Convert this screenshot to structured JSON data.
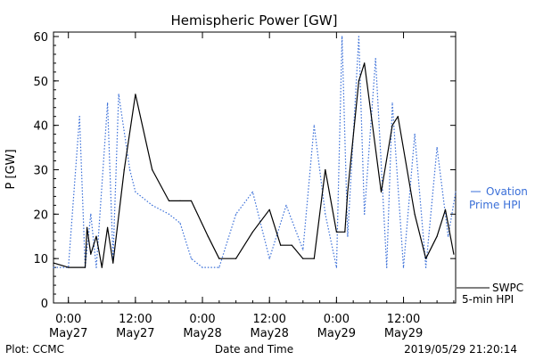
{
  "chart_data": {
    "type": "line",
    "title": "Hemispheric Power [GW]",
    "xlabel": "Date and Time",
    "ylabel": "P [GW]",
    "ylim": [
      0,
      61
    ],
    "yticks": [
      0,
      10,
      20,
      30,
      40,
      50,
      60
    ],
    "xlim": [
      "2019-05-26 21:20",
      "2019-05-29 21:20"
    ],
    "x_ticks": [
      {
        "x": "2019-05-27 00:00",
        "time": "0:00",
        "date": "May27"
      },
      {
        "x": "2019-05-27 12:00",
        "time": "12:00",
        "date": "May27"
      },
      {
        "x": "2019-05-28 00:00",
        "time": "0:00",
        "date": "May28"
      },
      {
        "x": "2019-05-28 12:00",
        "time": "12:00",
        "date": "May28"
      },
      {
        "x": "2019-05-29 00:00",
        "time": "0:00",
        "date": "May29"
      },
      {
        "x": "2019-05-29 12:00",
        "time": "12:00",
        "date": "May29"
      }
    ],
    "grid": false,
    "legend": "right",
    "series": [
      {
        "name": "SWPC 5-min HPI",
        "color": "#000000",
        "style": "solid",
        "points": [
          [
            "2019-05-26 21:20",
            9
          ],
          [
            "2019-05-27 00:00",
            8
          ],
          [
            "2019-05-27 03:00",
            8
          ],
          [
            "2019-05-27 03:20",
            17
          ],
          [
            "2019-05-27 04:00",
            11
          ],
          [
            "2019-05-27 05:00",
            15
          ],
          [
            "2019-05-27 06:00",
            8
          ],
          [
            "2019-05-27 07:00",
            17
          ],
          [
            "2019-05-27 08:00",
            9
          ],
          [
            "2019-05-27 10:00",
            30
          ],
          [
            "2019-05-27 12:00",
            47
          ],
          [
            "2019-05-27 15:00",
            30
          ],
          [
            "2019-05-27 18:00",
            23
          ],
          [
            "2019-05-27 20:00",
            23
          ],
          [
            "2019-05-27 22:00",
            23
          ],
          [
            "2019-05-28 01:00",
            15
          ],
          [
            "2019-05-28 03:00",
            10
          ],
          [
            "2019-05-28 06:00",
            10
          ],
          [
            "2019-05-28 09:00",
            16
          ],
          [
            "2019-05-28 12:00",
            21
          ],
          [
            "2019-05-28 14:00",
            13
          ],
          [
            "2019-05-28 16:00",
            13
          ],
          [
            "2019-05-28 18:00",
            10
          ],
          [
            "2019-05-28 20:00",
            10
          ],
          [
            "2019-05-28 22:00",
            30
          ],
          [
            "2019-05-29 00:00",
            16
          ],
          [
            "2019-05-29 01:30",
            16
          ],
          [
            "2019-05-29 02:00",
            25
          ],
          [
            "2019-05-29 04:00",
            50
          ],
          [
            "2019-05-29 05:00",
            54
          ],
          [
            "2019-05-29 08:00",
            25
          ],
          [
            "2019-05-29 10:00",
            40
          ],
          [
            "2019-05-29 11:00",
            42
          ],
          [
            "2019-05-29 14:00",
            20
          ],
          [
            "2019-05-29 16:00",
            10
          ],
          [
            "2019-05-29 18:00",
            15
          ],
          [
            "2019-05-29 19:30",
            21
          ],
          [
            "2019-05-29 21:00",
            11
          ]
        ]
      },
      {
        "name": "Ovation Prime HPI",
        "color": "#3a6fd8",
        "style": "dotted",
        "points": [
          [
            "2019-05-26 21:20",
            8
          ],
          [
            "2019-05-27 00:00",
            8
          ],
          [
            "2019-05-27 02:00",
            42
          ],
          [
            "2019-05-27 03:00",
            8
          ],
          [
            "2019-05-27 04:00",
            20
          ],
          [
            "2019-05-27 05:00",
            8
          ],
          [
            "2019-05-27 07:00",
            45
          ],
          [
            "2019-05-27 08:00",
            10
          ],
          [
            "2019-05-27 09:00",
            47
          ],
          [
            "2019-05-27 11:00",
            30
          ],
          [
            "2019-05-27 12:00",
            25
          ],
          [
            "2019-05-27 15:00",
            22
          ],
          [
            "2019-05-27 18:00",
            20
          ],
          [
            "2019-05-27 20:00",
            18
          ],
          [
            "2019-05-27 22:00",
            10
          ],
          [
            "2019-05-28 00:00",
            8
          ],
          [
            "2019-05-28 03:00",
            8
          ],
          [
            "2019-05-28 06:00",
            20
          ],
          [
            "2019-05-28 09:00",
            25
          ],
          [
            "2019-05-28 12:00",
            10
          ],
          [
            "2019-05-28 15:00",
            22
          ],
          [
            "2019-05-28 18:00",
            12
          ],
          [
            "2019-05-28 20:00",
            40
          ],
          [
            "2019-05-28 22:00",
            20
          ],
          [
            "2019-05-29 00:00",
            8
          ],
          [
            "2019-05-29 01:00",
            60
          ],
          [
            "2019-05-29 02:00",
            15
          ],
          [
            "2019-05-29 04:00",
            60
          ],
          [
            "2019-05-29 05:00",
            20
          ],
          [
            "2019-05-29 07:00",
            55
          ],
          [
            "2019-05-29 09:00",
            8
          ],
          [
            "2019-05-29 10:00",
            45
          ],
          [
            "2019-05-29 12:00",
            8
          ],
          [
            "2019-05-29 14:00",
            38
          ],
          [
            "2019-05-29 16:00",
            8
          ],
          [
            "2019-05-29 18:00",
            35
          ],
          [
            "2019-05-29 20:00",
            15
          ],
          [
            "2019-05-29 21:20",
            25
          ]
        ]
      }
    ]
  },
  "legend": {
    "ovation_line1": "Ovation",
    "ovation_line2": "Prime HPI",
    "swpc_line1": "SWPC",
    "swpc_line2": "5-min HPI"
  },
  "footer": {
    "plot_credit": "Plot: CCMC",
    "timestamp": "2019/05/29 21:20:14"
  }
}
